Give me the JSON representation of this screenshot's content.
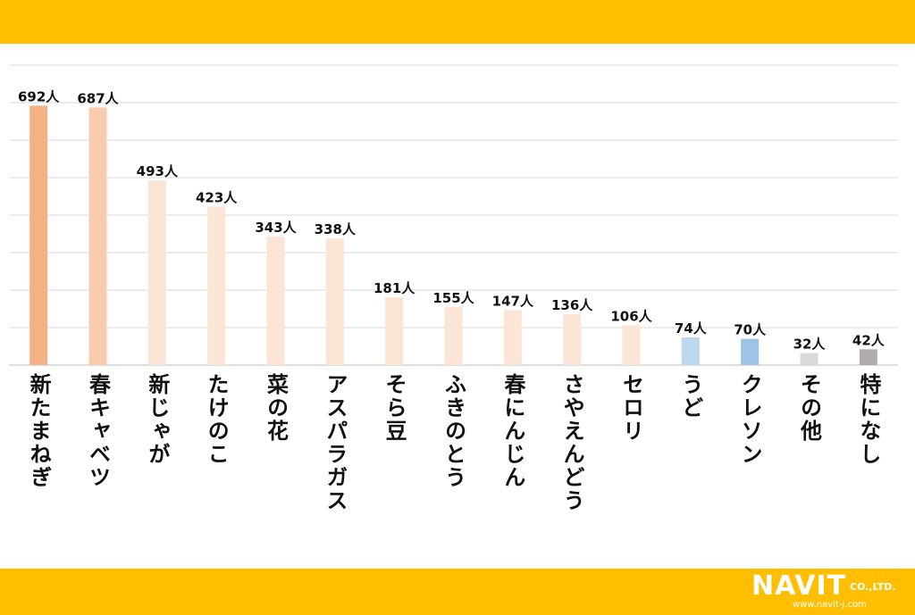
{
  "brand": {
    "logo_text": "NAVIT",
    "company_suffix": "CO.,LTD.",
    "url": "www.navit-j.com",
    "band_color": "#FFBF00"
  },
  "chart_data": {
    "type": "bar",
    "title": "",
    "xlabel": "",
    "ylabel": "",
    "ylim": [
      0,
      800
    ],
    "grid": true,
    "unit": "人",
    "categories": [
      "新たまねぎ",
      "春キャベツ",
      "新じゃが",
      "たけのこ",
      "菜の花",
      "アスパラガス",
      "そら豆",
      "ふきのとう",
      "春にんじん",
      "さやえんどう",
      "セロリ",
      "うど",
      "クレソン",
      "その他",
      "特になし"
    ],
    "values": [
      692,
      687,
      493,
      423,
      343,
      338,
      181,
      155,
      147,
      136,
      106,
      74,
      70,
      32,
      42
    ],
    "value_labels": [
      "692人",
      "687人",
      "493人",
      "423人",
      "343人",
      "338人",
      "181人",
      "155人",
      "147人",
      "136人",
      "106人",
      "74人",
      "70人",
      "32人",
      "42人"
    ],
    "bar_colors": [
      "#F4B183",
      "#F8CBAD",
      "#FBE5D6",
      "#FBE5D6",
      "#FBE5D6",
      "#FBE5D6",
      "#FBE5D6",
      "#FBE5D6",
      "#FBE5D6",
      "#FBE5D6",
      "#FBE5D6",
      "#BDD7EE",
      "#9DC3E6",
      "#D9D9D9",
      "#AFABAB"
    ]
  }
}
